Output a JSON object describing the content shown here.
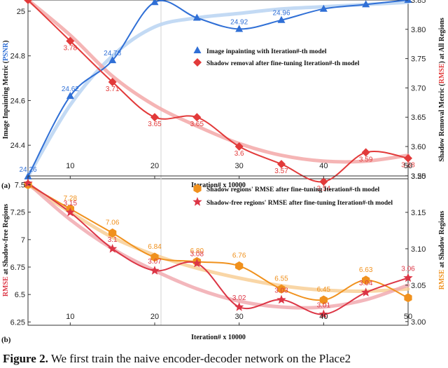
{
  "chart_data": [
    {
      "type": "line",
      "panel": "(a)",
      "xlabel": "Iteration# x 10000",
      "x": [
        5,
        10,
        15,
        20,
        25,
        30,
        35,
        40,
        45,
        50
      ],
      "xticks": [
        10,
        20,
        30,
        40,
        50
      ],
      "xlim": [
        5,
        50
      ],
      "left_axis": {
        "label_parts": [
          "Image Inpainting Metric (",
          "PSNR",
          ")"
        ],
        "ylim": [
          24.25,
          25.05
        ],
        "ticks": [
          24.4,
          24.6,
          24.8,
          25
        ],
        "tick_labels": [
          "24.4",
          "24.6",
          "24.8",
          "25"
        ]
      },
      "right_axis": {
        "label_parts": [
          "Shadow Removal Metric (",
          "RMSE",
          ") at All Regions"
        ],
        "ylim": [
          3.545,
          3.85
        ],
        "ticks": [
          3.55,
          3.6,
          3.65,
          3.7,
          3.75,
          3.8,
          3.85
        ],
        "tick_labels": [
          "3.55",
          "3.60",
          "3.65",
          "3.70",
          "3.75",
          "3.80",
          "3.85"
        ]
      },
      "series": [
        {
          "name": "Image inpainting with Iteration#-th model",
          "axis": "left",
          "color": "#2f6fd6",
          "trend_color": "#b9d3f2",
          "marker": "triangle",
          "values": [
            24.26,
            24.62,
            24.78,
            25.04,
            24.97,
            24.92,
            24.96,
            25.01,
            25.03,
            25.05
          ],
          "trend": [
            24.26,
            24.58,
            24.8,
            24.93,
            24.97,
            24.99,
            25.01,
            25.02,
            25.03,
            25.04
          ],
          "labels": [
            "24.26",
            "24.62",
            "24.78",
            "",
            "",
            "24.92",
            "24.96",
            "",
            "",
            ""
          ]
        },
        {
          "name": "Shadow removal after fine-tuning Iteration#-th model",
          "axis": "right",
          "color": "#e23a3a",
          "trend_color": "#f3a8a8",
          "marker": "diamond",
          "values": [
            3.85,
            3.78,
            3.71,
            3.65,
            3.65,
            3.6,
            3.57,
            3.54,
            3.59,
            3.58
          ],
          "trend": [
            3.85,
            3.79,
            3.72,
            3.67,
            3.635,
            3.605,
            3.585,
            3.575,
            3.575,
            3.585
          ],
          "labels": [
            "",
            "3.78",
            "3.71",
            "3.65",
            "3.65",
            "3.6",
            "3.57",
            "3.54",
            "3.59",
            "3.58"
          ]
        }
      ]
    },
    {
      "type": "line",
      "panel": "(b)",
      "xlabel": "Iteration# x 10000",
      "x": [
        5,
        10,
        15,
        20,
        25,
        30,
        35,
        40,
        45,
        50
      ],
      "xticks": [
        10,
        20,
        30,
        40,
        50
      ],
      "xlim": [
        5,
        50
      ],
      "left_axis": {
        "label_parts": [
          "",
          "RMSE",
          " at Shadow-free Regions"
        ],
        "ylim": [
          6.22,
          7.58
        ],
        "ticks": [
          6.25,
          6.5,
          6.75,
          7,
          7.25,
          7.5
        ],
        "tick_labels": [
          "6.25",
          "6.5",
          "6.75",
          "7",
          "7.25",
          "7.5"
        ]
      },
      "right_axis": {
        "label_parts": [
          "",
          "RMSE",
          " at Shadow Regions"
        ],
        "ylim": [
          2.995,
          3.2
        ],
        "ticks": [
          3.0,
          3.05,
          3.1,
          3.15,
          3.2
        ],
        "tick_labels": [
          "3.00",
          "3.05",
          "3.10",
          "3.15",
          "3.20"
        ]
      },
      "series": [
        {
          "name": "Shadow regions' RMSE after fine-tuning Iteration#-th model",
          "axis": "left",
          "color": "#f0911d",
          "trend_color": "#f8cf97",
          "marker": "hexagon",
          "values": [
            7.5,
            7.28,
            7.06,
            6.84,
            6.8,
            6.76,
            6.55,
            6.45,
            6.63,
            6.47
          ],
          "trend": [
            7.5,
            7.25,
            7.02,
            6.86,
            6.74,
            6.65,
            6.58,
            6.54,
            6.53,
            6.55
          ],
          "labels": [
            "",
            "7.28",
            "7.06",
            "6.84",
            "6.80",
            "6.76",
            "6.55",
            "6.45",
            "6.63",
            ""
          ]
        },
        {
          "name": "Shadow-free regions' RMSE after fine-tuning Iteration#-th model",
          "axis": "right",
          "color": "#dc3545",
          "trend_color": "#f1aab0",
          "marker": "star",
          "values": [
            3.19,
            3.15,
            3.1,
            3.07,
            3.08,
            3.02,
            3.03,
            3.01,
            3.04,
            3.06
          ],
          "trend": [
            3.19,
            3.14,
            3.1,
            3.07,
            3.045,
            3.028,
            3.02,
            3.02,
            3.03,
            3.05
          ],
          "labels": [
            "",
            "3.15",
            "3.1",
            "3.07",
            "3.08",
            "3.02",
            "3.03",
            "3.01",
            "3.04",
            "3.06"
          ]
        }
      ]
    }
  ],
  "caption": {
    "figure_label": "Figure 2.",
    "text": "We first train the naive encoder-decoder network on the Place2"
  }
}
